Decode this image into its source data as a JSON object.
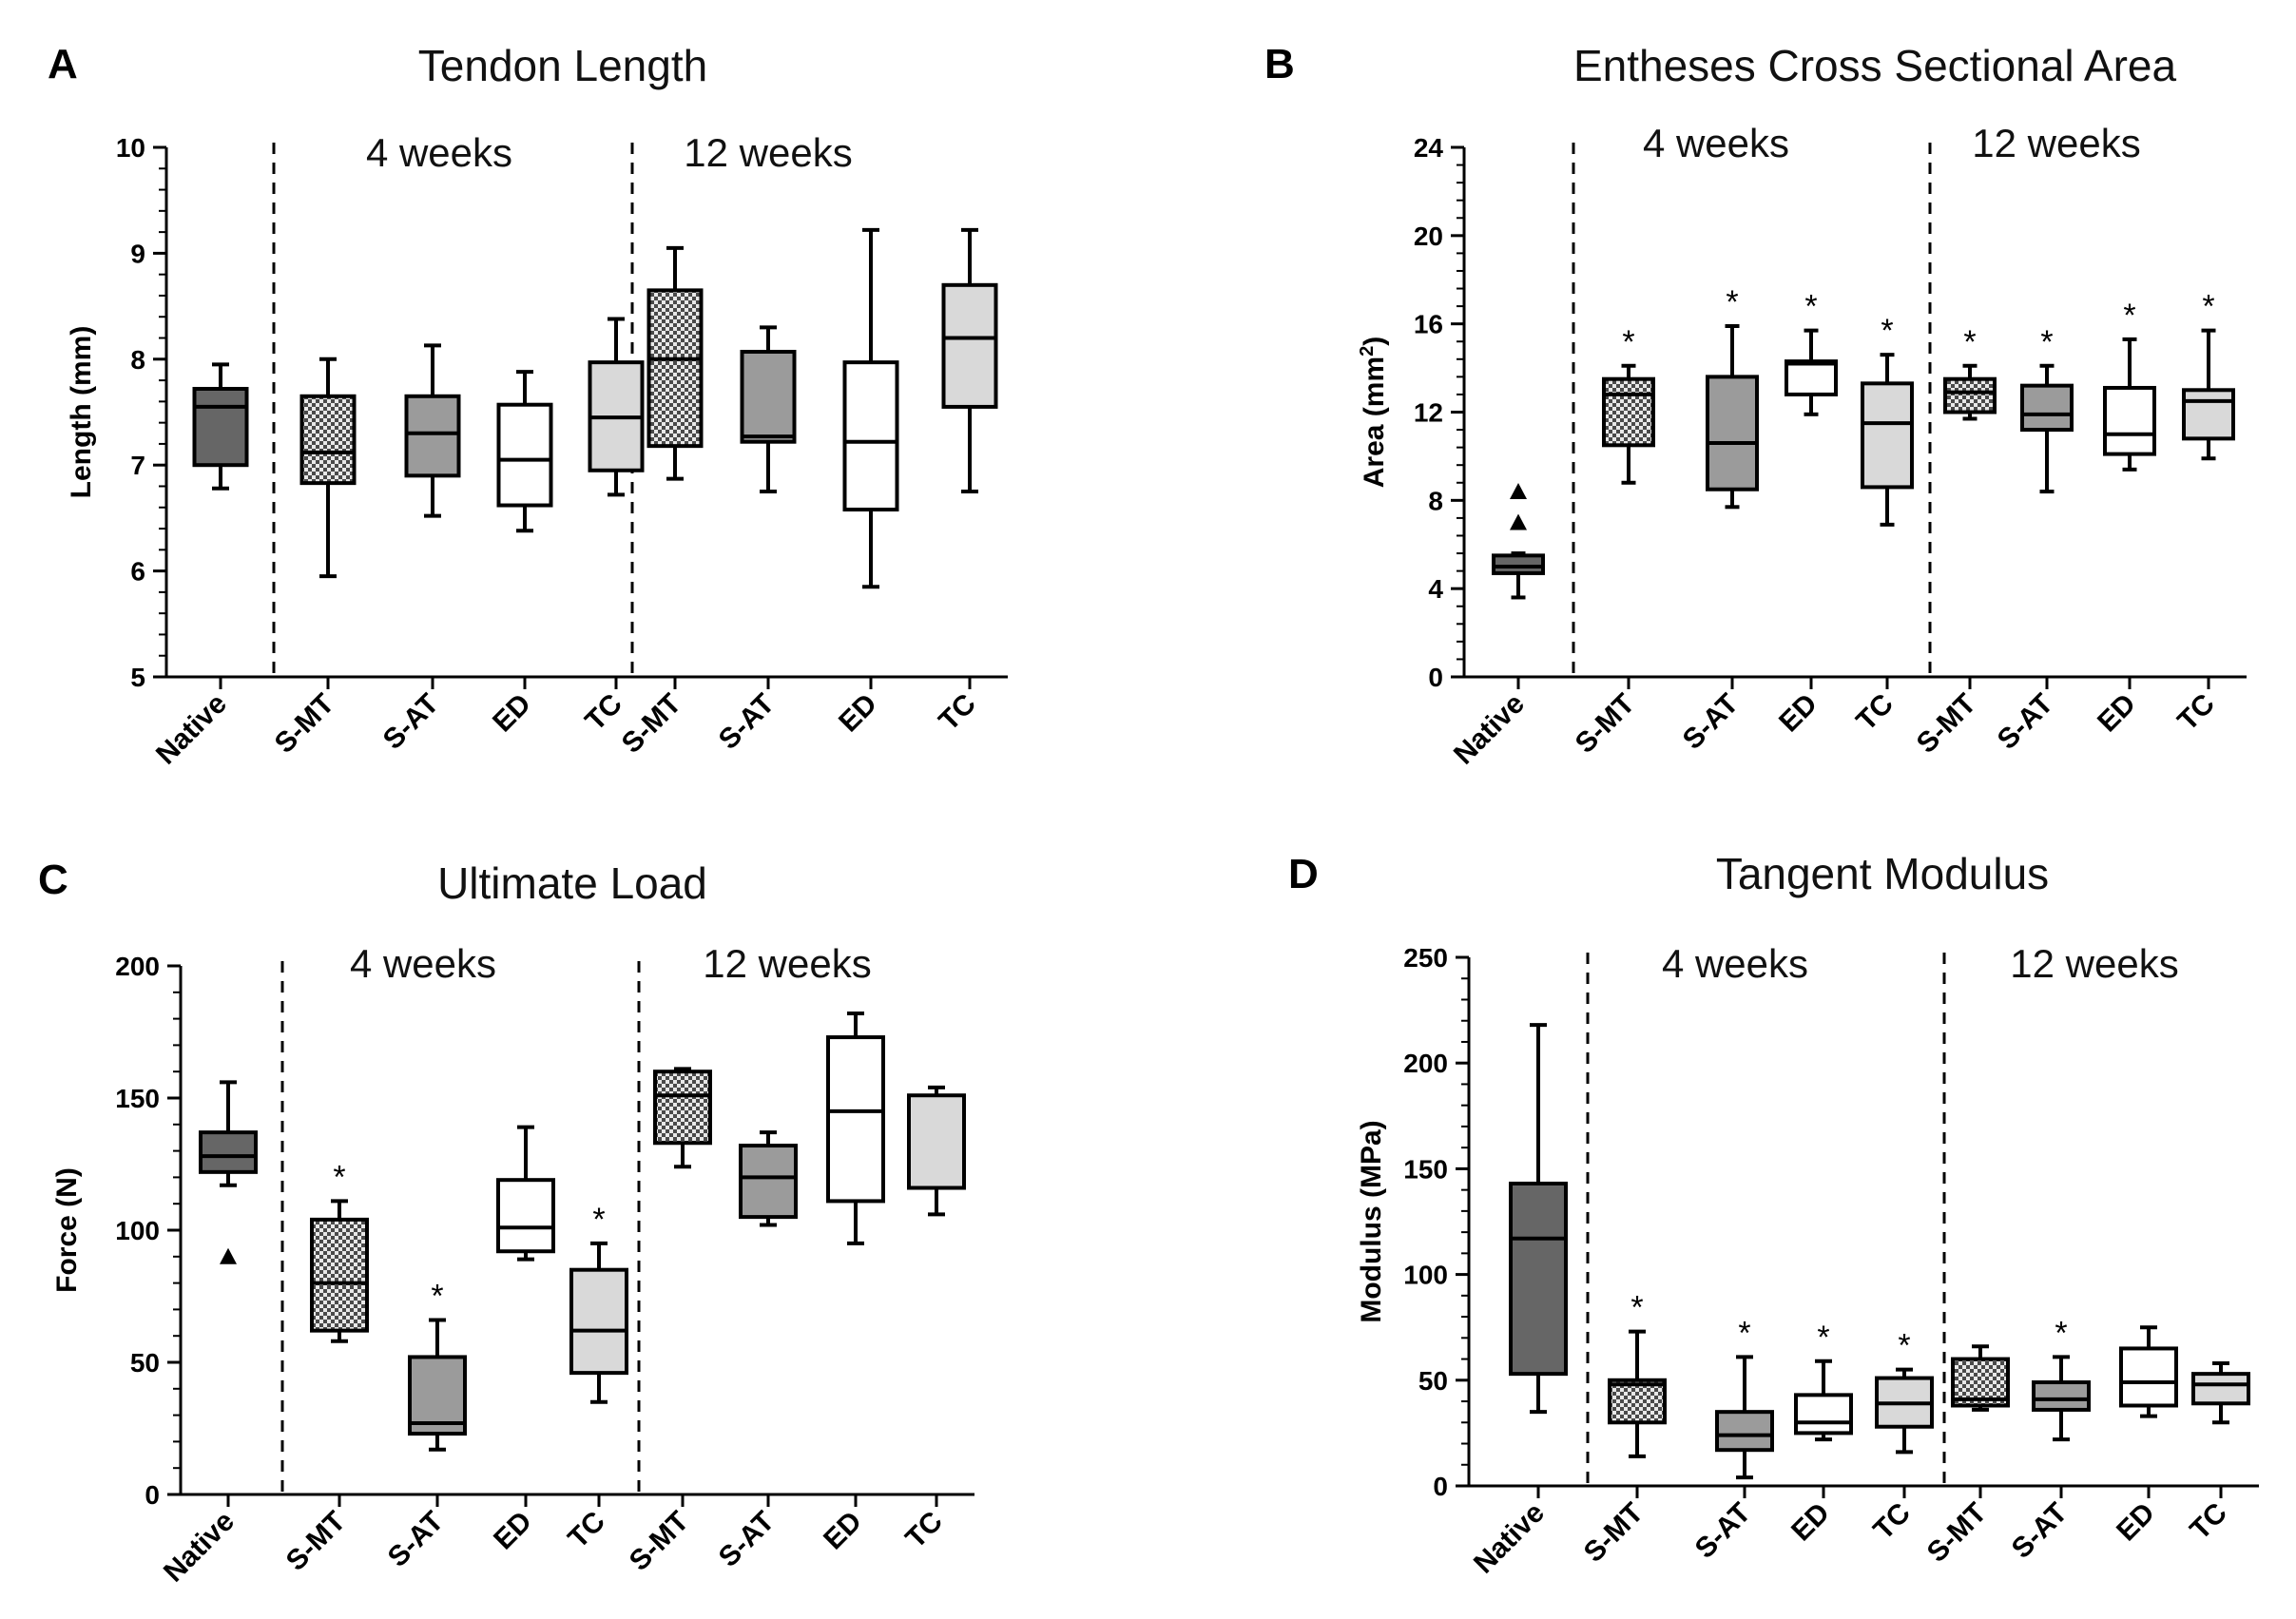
{
  "figure": {
    "group_labels": [
      "4 weeks",
      "12 weeks"
    ],
    "colors": {
      "native": "#666666",
      "s_at": "#9b9b9b",
      "ed": "#ffffff",
      "tc": "#d9d9d9",
      "s_mt_bg": "#e8e8e8",
      "s_mt_dot": "#4a4a4a",
      "stroke": "#000000"
    }
  },
  "chart_data": [
    {
      "panel": "A",
      "type": "box",
      "title": "Tendon Length",
      "ylabel": "Length (mm)",
      "ylim": [
        5,
        10
      ],
      "yticks": [
        5,
        6,
        7,
        8,
        9,
        10
      ],
      "categories": [
        "Native",
        "S-MT",
        "S-AT",
        "ED",
        "TC",
        "S-MT",
        "S-AT",
        "ED",
        "TC"
      ],
      "boxes": [
        {
          "category": "Native",
          "style": "native",
          "min": 6.78,
          "q1": 7.0,
          "median": 7.55,
          "q3": 7.72,
          "max": 7.95
        },
        {
          "category": "S-MT",
          "group": "4 weeks",
          "style": "s_mt",
          "min": 5.95,
          "q1": 6.83,
          "median": 7.12,
          "q3": 7.65,
          "max": 8.0
        },
        {
          "category": "S-AT",
          "group": "4 weeks",
          "style": "s_at",
          "min": 6.52,
          "q1": 6.9,
          "median": 7.3,
          "q3": 7.65,
          "max": 8.13
        },
        {
          "category": "ED",
          "group": "4 weeks",
          "style": "ed",
          "min": 6.38,
          "q1": 6.62,
          "median": 7.05,
          "q3": 7.57,
          "max": 7.88
        },
        {
          "category": "TC",
          "group": "4 weeks",
          "style": "tc",
          "min": 6.72,
          "q1": 6.95,
          "median": 7.45,
          "q3": 7.97,
          "max": 8.38
        },
        {
          "category": "S-MT",
          "group": "12 weeks",
          "style": "s_mt",
          "min": 6.87,
          "q1": 7.18,
          "median": 8.0,
          "q3": 8.65,
          "max": 9.05
        },
        {
          "category": "S-AT",
          "group": "12 weeks",
          "style": "s_at",
          "min": 6.75,
          "q1": 7.22,
          "median": 7.27,
          "q3": 8.07,
          "max": 8.3
        },
        {
          "category": "ED",
          "group": "12 weeks",
          "style": "ed",
          "min": 5.85,
          "q1": 6.58,
          "median": 7.22,
          "q3": 7.97,
          "max": 9.22
        },
        {
          "category": "TC",
          "group": "12 weeks",
          "style": "tc",
          "min": 6.75,
          "q1": 7.55,
          "median": 8.2,
          "q3": 8.7,
          "max": 9.22
        }
      ]
    },
    {
      "panel": "B",
      "type": "box",
      "title": "Entheses Cross Sectional Area",
      "ylabel": "Area (mm",
      "ylabel_sup": "2",
      "ylabel_end": ")",
      "ylim": [
        0,
        24
      ],
      "yticks": [
        0,
        4,
        8,
        12,
        16,
        20,
        24
      ],
      "categories": [
        "Native",
        "S-MT",
        "S-AT",
        "ED",
        "TC",
        "S-MT",
        "S-AT",
        "ED",
        "TC"
      ],
      "significance_marker": "*",
      "boxes": [
        {
          "category": "Native",
          "style": "native",
          "min": 3.6,
          "q1": 4.7,
          "median": 5.0,
          "q3": 5.5,
          "max": 5.6,
          "outliers": [
            7.0,
            8.4
          ]
        },
        {
          "category": "S-MT",
          "group": "4 weeks",
          "style": "s_mt",
          "min": 8.8,
          "q1": 10.5,
          "median": 12.8,
          "q3": 13.5,
          "max": 14.1,
          "significant": true
        },
        {
          "category": "S-AT",
          "group": "4 weeks",
          "style": "s_at",
          "min": 7.7,
          "q1": 8.5,
          "median": 10.6,
          "q3": 13.6,
          "max": 15.9,
          "significant": true
        },
        {
          "category": "ED",
          "group": "4 weeks",
          "style": "ed",
          "min": 11.9,
          "q1": 12.8,
          "median": 14.2,
          "q3": 14.3,
          "max": 15.7,
          "significant": true
        },
        {
          "category": "TC",
          "group": "4 weeks",
          "style": "tc",
          "min": 6.9,
          "q1": 8.6,
          "median": 11.5,
          "q3": 13.3,
          "max": 14.6,
          "significant": true
        },
        {
          "category": "S-MT",
          "group": "12 weeks",
          "style": "s_mt",
          "min": 11.7,
          "q1": 12.0,
          "median": 12.9,
          "q3": 13.5,
          "max": 14.1,
          "significant": true
        },
        {
          "category": "S-AT",
          "group": "12 weeks",
          "style": "s_at",
          "min": 8.4,
          "q1": 11.2,
          "median": 11.9,
          "q3": 13.2,
          "max": 14.1,
          "significant": true
        },
        {
          "category": "ED",
          "group": "12 weeks",
          "style": "ed",
          "min": 9.4,
          "q1": 10.1,
          "median": 11.0,
          "q3": 13.1,
          "max": 15.3,
          "significant": true
        },
        {
          "category": "TC",
          "group": "12 weeks",
          "style": "tc",
          "min": 9.9,
          "q1": 10.8,
          "median": 12.5,
          "q3": 13.0,
          "max": 15.7,
          "significant": true
        }
      ]
    },
    {
      "panel": "C",
      "type": "box",
      "title": "Ultimate Load",
      "ylabel": "Force (N)",
      "ylim": [
        0,
        200
      ],
      "yticks": [
        0,
        50,
        100,
        150,
        200
      ],
      "categories": [
        "Native",
        "S-MT",
        "S-AT",
        "ED",
        "TC",
        "S-MT",
        "S-AT",
        "ED",
        "TC"
      ],
      "significance_marker": "*",
      "boxes": [
        {
          "category": "Native",
          "style": "native",
          "min": 117,
          "q1": 122,
          "median": 128,
          "q3": 137,
          "max": 156,
          "outliers": [
            90
          ]
        },
        {
          "category": "S-MT",
          "group": "4 weeks",
          "style": "s_mt",
          "min": 58,
          "q1": 62,
          "median": 80,
          "q3": 104,
          "max": 111,
          "significant": true
        },
        {
          "category": "S-AT",
          "group": "4 weeks",
          "style": "s_at",
          "min": 17,
          "q1": 23,
          "median": 27,
          "q3": 52,
          "max": 66,
          "significant": true
        },
        {
          "category": "ED",
          "group": "4 weeks",
          "style": "ed",
          "min": 89,
          "q1": 92,
          "median": 101,
          "q3": 119,
          "max": 139
        },
        {
          "category": "TC",
          "group": "4 weeks",
          "style": "tc",
          "min": 35,
          "q1": 46,
          "median": 62,
          "q3": 85,
          "max": 95,
          "significant": true
        },
        {
          "category": "S-MT",
          "group": "12 weeks",
          "style": "s_mt",
          "min": 124,
          "q1": 133,
          "median": 151,
          "q3": 160,
          "max": 161
        },
        {
          "category": "S-AT",
          "group": "12 weeks",
          "style": "s_at",
          "min": 102,
          "q1": 105,
          "median": 120,
          "q3": 132,
          "max": 137
        },
        {
          "category": "ED",
          "group": "12 weeks",
          "style": "ed",
          "min": 95,
          "q1": 111,
          "median": 145,
          "q3": 173,
          "max": 182
        },
        {
          "category": "TC",
          "group": "12 weeks",
          "style": "tc",
          "min": 106,
          "q1": 116,
          "median": 116,
          "q3": 151,
          "max": 154
        }
      ]
    },
    {
      "panel": "D",
      "type": "box",
      "title": "Tangent Modulus",
      "ylabel": "Modulus (MPa)",
      "ylim": [
        0,
        250
      ],
      "yticks": [
        0,
        50,
        100,
        150,
        200,
        250
      ],
      "categories": [
        "Native",
        "S-MT",
        "S-AT",
        "ED",
        "TC",
        "S-MT",
        "S-AT",
        "ED",
        "TC"
      ],
      "significance_marker": "*",
      "boxes": [
        {
          "category": "Native",
          "style": "native",
          "min": 35,
          "q1": 53,
          "median": 117,
          "q3": 143,
          "max": 218
        },
        {
          "category": "S-MT",
          "group": "4 weeks",
          "style": "s_mt",
          "min": 14,
          "q1": 30,
          "median": 48,
          "q3": 50,
          "max": 73,
          "significant": true
        },
        {
          "category": "S-AT",
          "group": "4 weeks",
          "style": "s_at",
          "min": 4,
          "q1": 17,
          "median": 24,
          "q3": 35,
          "max": 61,
          "significant": true
        },
        {
          "category": "ED",
          "group": "4 weeks",
          "style": "ed",
          "min": 22,
          "q1": 25,
          "median": 30,
          "q3": 43,
          "max": 59,
          "significant": true
        },
        {
          "category": "TC",
          "group": "4 weeks",
          "style": "tc",
          "min": 16,
          "q1": 28,
          "median": 39,
          "q3": 51,
          "max": 55,
          "significant": true
        },
        {
          "category": "S-MT",
          "group": "12 weeks",
          "style": "s_mt",
          "min": 36,
          "q1": 38,
          "median": 41,
          "q3": 60,
          "max": 66
        },
        {
          "category": "S-AT",
          "group": "12 weeks",
          "style": "s_at",
          "min": 22,
          "q1": 36,
          "median": 41,
          "q3": 49,
          "max": 61,
          "significant": true
        },
        {
          "category": "ED",
          "group": "12 weeks",
          "style": "ed",
          "min": 33,
          "q1": 38,
          "median": 49,
          "q3": 65,
          "max": 75
        },
        {
          "category": "TC",
          "group": "12 weeks",
          "style": "tc",
          "min": 30,
          "q1": 39,
          "median": 48,
          "q3": 53,
          "max": 58
        }
      ]
    }
  ]
}
